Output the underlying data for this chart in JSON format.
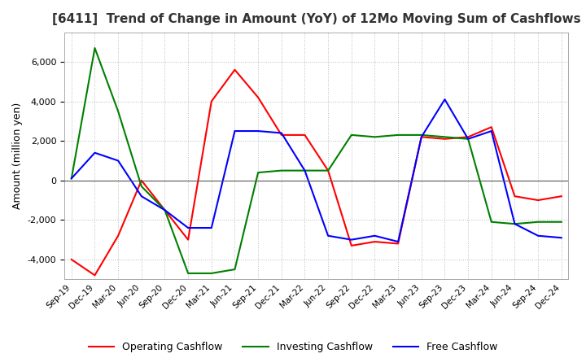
{
  "title": "[6411]  Trend of Change in Amount (YoY) of 12Mo Moving Sum of Cashflows",
  "ylabel": "Amount (million yen)",
  "ylim": [
    -5000,
    7500
  ],
  "yticks": [
    -4000,
    -2000,
    0,
    2000,
    4000,
    6000
  ],
  "x_labels": [
    "Sep-19",
    "Dec-19",
    "Mar-20",
    "Jun-20",
    "Sep-20",
    "Dec-20",
    "Mar-21",
    "Jun-21",
    "Sep-21",
    "Dec-21",
    "Mar-22",
    "Jun-22",
    "Sep-22",
    "Dec-22",
    "Mar-23",
    "Jun-23",
    "Sep-23",
    "Dec-23",
    "Mar-24",
    "Jun-24",
    "Sep-24",
    "Dec-24"
  ],
  "operating": [
    -4000,
    -4800,
    -2800,
    0,
    -1500,
    -3000,
    4000,
    5600,
    4200,
    2300,
    2300,
    500,
    -3300,
    -3100,
    -3200,
    2200,
    2100,
    2200,
    2700,
    -800,
    -1000,
    -800
  ],
  "investing": [
    100,
    6700,
    3500,
    -300,
    -1500,
    -4700,
    -4700,
    -4500,
    400,
    500,
    500,
    500,
    2300,
    2200,
    2300,
    2300,
    2200,
    2100,
    -2100,
    -2200,
    -2100,
    -2100
  ],
  "free": [
    100,
    1400,
    1000,
    -800,
    -1500,
    -2400,
    -2400,
    2500,
    2500,
    2400,
    500,
    -2800,
    -3000,
    -2800,
    -3100,
    2200,
    4100,
    2100,
    2500,
    -2200,
    -2800,
    -2900
  ],
  "line_colors": {
    "operating": "#ff0000",
    "investing": "#008000",
    "free": "#0000ff"
  },
  "legend_labels": [
    "Operating Cashflow",
    "Investing Cashflow",
    "Free Cashflow"
  ],
  "background_color": "#ffffff",
  "grid_color": "#bbbbbb"
}
